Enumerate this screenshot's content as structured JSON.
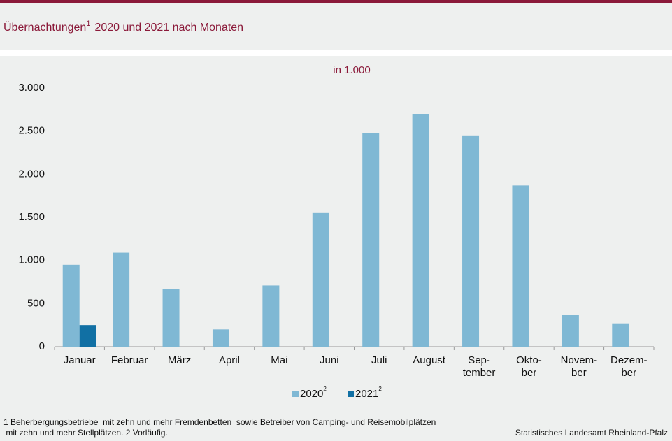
{
  "chart_data": {
    "type": "bar",
    "title": "Übernachtungen",
    "title_sup": "1",
    "title_rest": "2020 und 2021 nach Monaten",
    "subtitle": "in 1.000",
    "categories": [
      "Januar",
      "Februar",
      "März",
      "April",
      "Mai",
      "Juni",
      "Juli",
      "August",
      "Sep-\ntember",
      "Okto-\nber",
      "Novem-\nber",
      "Dezem-\nber"
    ],
    "series": [
      {
        "name": "2020",
        "color": "#7fb8d4",
        "values": [
          950,
          1090,
          670,
          200,
          710,
          1550,
          2480,
          2700,
          2450,
          1870,
          370,
          270
        ]
      },
      {
        "name": "2021",
        "color": "#1170a4",
        "values": [
          250,
          null,
          null,
          null,
          null,
          null,
          null,
          null,
          null,
          null,
          null,
          null
        ]
      }
    ],
    "legend_sup": "2",
    "ylim": [
      0,
      3000
    ],
    "yticks": [
      0,
      500,
      {
        "value": 1000,
        "label": "1.000"
      },
      {
        "value": 1500,
        "label": "1.500"
      },
      {
        "value": 2000,
        "label": "2.000"
      },
      {
        "value": 2500,
        "label": "2.500"
      },
      {
        "value": 3000,
        "label": "3.000"
      }
    ],
    "grid": false,
    "footnote_1": "1 Beherbergungsbetriebe  mit zehn und mehr Fremdenbetten  sowie Betreiber von Camping- und Reisemobilplätzen",
    "footnote_2": " mit zehn und mehr Stellplätzen. 2 Vorläufig.",
    "source": "Statistisches Landesamt Rheinland-Pfalz"
  }
}
